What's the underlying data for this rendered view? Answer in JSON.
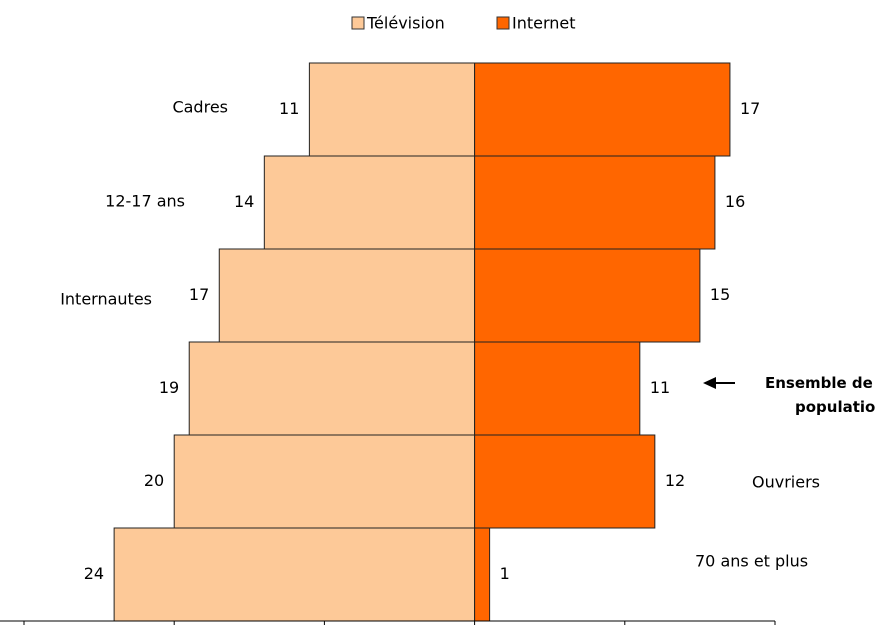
{
  "chart_data": {
    "type": "butterfly",
    "categories": [
      "Cadres",
      "12-17 ans",
      "Internautes",
      "Ensemble de la population",
      "Ouvriers",
      "70 ans et plus"
    ],
    "series": [
      {
        "name": "Télévision",
        "color": "#fdc998",
        "values": [
          11,
          14,
          17,
          19,
          20,
          24
        ]
      },
      {
        "name": "Internet",
        "color": "#ff6600",
        "values": [
          17,
          16,
          15,
          11,
          12,
          1
        ]
      }
    ],
    "xlim": [
      -30,
      20
    ],
    "xticks": [
      -30,
      -20,
      -10,
      0,
      10,
      20
    ]
  }
}
